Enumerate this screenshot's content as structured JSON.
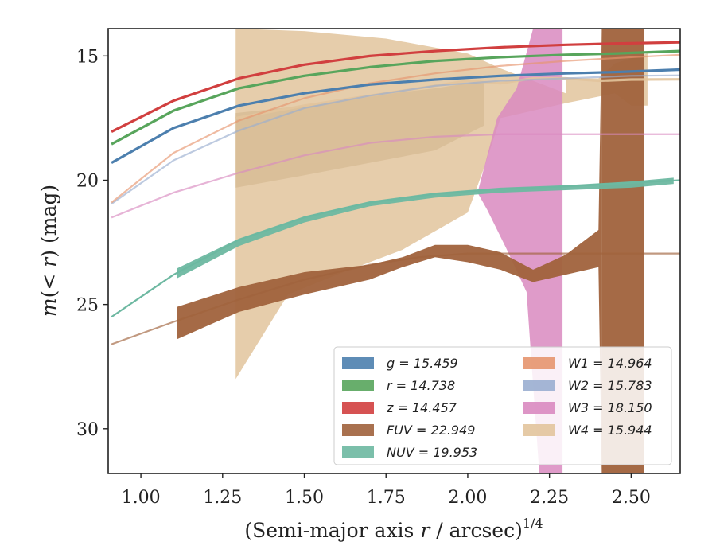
{
  "chart_data": {
    "type": "area",
    "xlabel_main": "(Semi-major axis ",
    "xlabel_var": "r",
    "xlabel_tail": " / arcsec)",
    "xlabel_sup": "1/4",
    "ylabel_pre": "m(< ",
    "ylabel_var": "r",
    "ylabel_post": ") (mag)",
    "xlim": [
      0.9,
      2.65
    ],
    "ylim": [
      31.8,
      13.9
    ],
    "y_inverted": true,
    "x_ticks": [
      1.0,
      1.25,
      1.5,
      1.75,
      2.0,
      2.25,
      2.5
    ],
    "x_tick_labels": [
      "1.00",
      "1.25",
      "1.50",
      "1.75",
      "2.00",
      "2.25",
      "2.50"
    ],
    "y_ticks": [
      15,
      20,
      25,
      30
    ],
    "y_tick_labels": [
      "15",
      "20",
      "25",
      "30"
    ],
    "grid": false,
    "legend_position": "lower-right",
    "series": [
      {
        "name": "g",
        "legend": "g = 15.459",
        "color": "#4c7fae",
        "x": [
          0.91,
          1.1,
          1.3,
          1.5,
          1.7,
          1.9,
          2.1,
          2.3,
          2.45,
          2.65
        ],
        "y": [
          19.3,
          17.9,
          17.0,
          16.5,
          16.15,
          15.95,
          15.8,
          15.7,
          15.65,
          15.55
        ],
        "width": 0.12
      },
      {
        "name": "r",
        "legend": "r = 14.738",
        "color": "#58a55c",
        "x": [
          0.91,
          1.1,
          1.3,
          1.5,
          1.7,
          1.9,
          2.1,
          2.3,
          2.45,
          2.65
        ],
        "y": [
          18.55,
          17.2,
          16.3,
          15.8,
          15.45,
          15.2,
          15.05,
          14.95,
          14.9,
          14.8
        ],
        "width": 0.12
      },
      {
        "name": "z",
        "legend": "z = 14.457",
        "color": "#d13f3f",
        "x": [
          0.91,
          1.1,
          1.3,
          1.5,
          1.7,
          1.9,
          2.1,
          2.3,
          2.45,
          2.65
        ],
        "y": [
          18.05,
          16.8,
          15.9,
          15.35,
          15.0,
          14.8,
          14.65,
          14.55,
          14.5,
          14.45
        ],
        "width": 0.12
      },
      {
        "name": "FUV",
        "legend": "FUV = 22.949",
        "color": "#a0623c",
        "x": [
          0.91,
          1.1,
          1.3,
          1.5,
          1.7,
          1.85,
          2.0,
          2.1,
          2.2,
          2.4,
          2.65
        ],
        "y": [
          26.6,
          25.7,
          24.8,
          24.0,
          23.4,
          23.1,
          22.95,
          22.95,
          22.95,
          22.95,
          22.95
        ],
        "width": 0.0,
        "band_x": [
          1.11,
          1.3,
          1.5,
          1.7,
          1.8,
          1.9,
          2.0,
          2.1,
          2.2,
          2.3,
          2.4,
          2.41
        ],
        "band_lo": [
          25.1,
          24.3,
          23.7,
          23.4,
          23.1,
          22.6,
          22.6,
          22.9,
          23.6,
          23.0,
          22.0,
          14.0
        ],
        "band_hi": [
          26.4,
          25.3,
          24.6,
          24.0,
          23.5,
          23.1,
          23.3,
          23.6,
          24.1,
          23.8,
          23.5,
          31.8
        ],
        "col_x": [
          2.41,
          2.54
        ]
      },
      {
        "name": "NUV",
        "legend": "NUV = 19.953",
        "color": "#6db8a1",
        "x": [
          0.91,
          1.1,
          1.3,
          1.5,
          1.7,
          1.9,
          2.1,
          2.3,
          2.5,
          2.65
        ],
        "y": [
          25.5,
          23.8,
          22.4,
          21.5,
          20.9,
          20.55,
          20.35,
          20.25,
          20.1,
          20.0
        ],
        "width": 0.35
      },
      {
        "name": "W1",
        "legend": "W1 = 14.964",
        "color": "#e6956e",
        "x": [
          0.91,
          1.1,
          1.3,
          1.5,
          1.7,
          1.9,
          2.1,
          2.3,
          2.5,
          2.65
        ],
        "y": [
          20.9,
          18.9,
          17.6,
          16.7,
          16.1,
          15.7,
          15.4,
          15.2,
          15.05,
          14.95
        ],
        "width": 0.05
      },
      {
        "name": "W2",
        "legend": "W2 = 15.783",
        "color": "#9aaed0",
        "x": [
          0.91,
          1.1,
          1.3,
          1.5,
          1.7,
          1.9,
          2.1,
          2.3,
          2.5,
          2.65
        ],
        "y": [
          20.95,
          19.2,
          18.0,
          17.1,
          16.6,
          16.2,
          16.0,
          15.9,
          15.8,
          15.78
        ],
        "width": 0.05
      },
      {
        "name": "W3",
        "legend": "W3 = 18.150",
        "color": "#d98ac0",
        "x": [
          0.91,
          1.1,
          1.3,
          1.5,
          1.7,
          1.9,
          2.1,
          2.3,
          2.5,
          2.65
        ],
        "y": [
          21.5,
          20.5,
          19.7,
          19.0,
          18.5,
          18.25,
          18.15,
          18.15,
          18.15,
          18.15
        ],
        "width": 0.05
      },
      {
        "name": "W4",
        "legend": "W4 = 15.944",
        "color": "#e2c49c",
        "x": [
          1.29,
          1.5,
          1.7,
          1.9,
          2.0,
          2.1,
          2.2,
          2.3,
          2.4,
          2.5,
          2.65
        ],
        "y": [
          17.5,
          17.0,
          16.6,
          16.2,
          16.0,
          16.1,
          15.9,
          15.9,
          16.0,
          15.95,
          15.94
        ],
        "width": 0.0
      }
    ],
    "legend_columns": [
      [
        "g = 15.459",
        "r = 14.738",
        "z = 14.457",
        "FUV = 22.949",
        "NUV = 19.953"
      ],
      [
        "W1 = 14.964",
        "W2 = 15.783",
        "W3 = 18.150",
        "W4 = 15.944"
      ]
    ]
  },
  "colors": {
    "g": "#4c7fae",
    "r": "#58a55c",
    "z": "#d13f3f",
    "FUV": "#a0623c",
    "NUV": "#6db8a1",
    "W1": "#e6956e",
    "W2": "#9aaed0",
    "W3": "#d98ac0",
    "W4": "#e2c49c"
  }
}
